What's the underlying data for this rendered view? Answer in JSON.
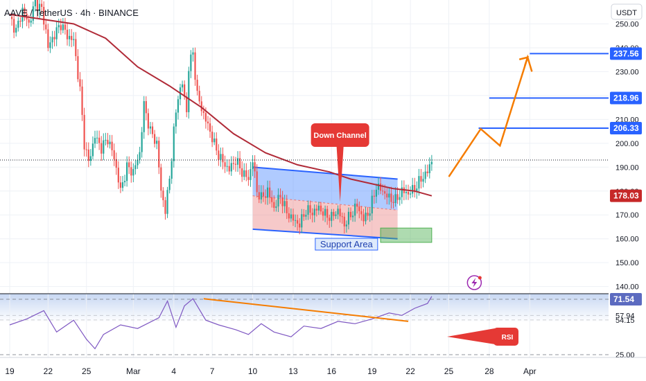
{
  "header": {
    "title": "AAVE / TetherUS · 4h · BINANCE",
    "currency": "USDT"
  },
  "chart_data": {
    "type": "candlestick",
    "symbol": "AAVE / TetherUS",
    "timeframe": "4h",
    "exchange": "BINANCE",
    "currency": "USDT",
    "price_axis": {
      "range": [
        137,
        260
      ],
      "ticks": [
        250,
        240,
        230,
        220,
        210,
        200,
        190,
        180,
        170,
        160,
        150,
        140
      ],
      "tick_labels": [
        "250.00",
        "240.00",
        "230.00",
        "220.00",
        "210.00",
        "200.00",
        "190.00",
        "180.00",
        "170.00",
        "160.00",
        "150.00",
        "140.00"
      ]
    },
    "time_axis": {
      "labels": [
        "19",
        "22",
        "25",
        "Mar",
        "4",
        "7",
        "10",
        "13",
        "16",
        "19",
        "22",
        "25",
        "28",
        "Apr"
      ],
      "label_index": [
        0,
        18,
        36,
        58,
        77,
        95,
        114,
        133,
        151,
        170,
        188,
        206,
        225,
        244
      ]
    },
    "price_points": [
      [
        0,
        253
      ],
      [
        3,
        247
      ],
      [
        6,
        256
      ],
      [
        9,
        250
      ],
      [
        12,
        259
      ],
      [
        15,
        256
      ],
      [
        17,
        247
      ],
      [
        18,
        240
      ],
      [
        20,
        244
      ],
      [
        24,
        250
      ],
      [
        27,
        245
      ],
      [
        30,
        243
      ],
      [
        33,
        222
      ],
      [
        35,
        200
      ],
      [
        37,
        192
      ],
      [
        40,
        203
      ],
      [
        43,
        198
      ],
      [
        46,
        202
      ],
      [
        49,
        194
      ],
      [
        52,
        180
      ],
      [
        55,
        190
      ],
      [
        58,
        188
      ],
      [
        61,
        196
      ],
      [
        63,
        216
      ],
      [
        66,
        205
      ],
      [
        69,
        200
      ],
      [
        71,
        180
      ],
      [
        73,
        172
      ],
      [
        75,
        185
      ],
      [
        77,
        205
      ],
      [
        79,
        220
      ],
      [
        81,
        225
      ],
      [
        83,
        213
      ],
      [
        84,
        232
      ],
      [
        86,
        238
      ],
      [
        88,
        220
      ],
      [
        91,
        212
      ],
      [
        94,
        205
      ],
      [
        97,
        197
      ],
      [
        100,
        192
      ],
      [
        103,
        189
      ],
      [
        106,
        193
      ],
      [
        109,
        188
      ],
      [
        112,
        185
      ],
      [
        114,
        193
      ],
      [
        116,
        180
      ],
      [
        118,
        177
      ],
      [
        121,
        180
      ],
      [
        124,
        173
      ],
      [
        127,
        178
      ],
      [
        130,
        171
      ],
      [
        133,
        168
      ],
      [
        136,
        166
      ],
      [
        139,
        172
      ],
      [
        142,
        171
      ],
      [
        145,
        173
      ],
      [
        148,
        170
      ],
      [
        151,
        169
      ],
      [
        154,
        172
      ],
      [
        157,
        166
      ],
      [
        160,
        170
      ],
      [
        163,
        174
      ],
      [
        166,
        168
      ],
      [
        169,
        172
      ],
      [
        172,
        182
      ],
      [
        175,
        180
      ],
      [
        178,
        177
      ],
      [
        181,
        176
      ],
      [
        184,
        180
      ],
      [
        187,
        179
      ],
      [
        190,
        181
      ],
      [
        193,
        185
      ],
      [
        196,
        188
      ],
      [
        198,
        193
      ]
    ],
    "moving_average": [
      [
        0,
        254
      ],
      [
        15,
        252
      ],
      [
        30,
        250
      ],
      [
        45,
        244
      ],
      [
        60,
        232
      ],
      [
        75,
        224
      ],
      [
        90,
        215
      ],
      [
        105,
        204
      ],
      [
        120,
        196
      ],
      [
        135,
        191
      ],
      [
        150,
        188
      ],
      [
        160,
        185
      ],
      [
        170,
        183
      ],
      [
        180,
        181
      ],
      [
        190,
        180
      ],
      [
        198,
        178
      ]
    ],
    "price_labels": [
      {
        "value": 237.56,
        "text": "237.56"
      },
      {
        "value": 218.96,
        "text": "218.96"
      },
      {
        "value": 206.33,
        "text": "206.33"
      },
      {
        "value": 178.03,
        "text": "178.03"
      }
    ],
    "current_price": 193,
    "projection_path": [
      [
        206,
        186
      ],
      [
        221,
        206
      ],
      [
        230,
        199
      ],
      [
        243,
        236
      ],
      [
        245,
        230
      ]
    ],
    "channel": {
      "upper": [
        [
          114,
          190
        ],
        [
          182,
          185
        ]
      ],
      "lower": [
        [
          114,
          164
        ],
        [
          182,
          160
        ]
      ]
    },
    "support_zone": [
      [
        174,
        158.5
      ],
      [
        198,
        164.5
      ]
    ],
    "annotations": {
      "down_channel": "Down Channel",
      "support_area": "Support Area",
      "rsi": "RSI"
    },
    "rsi": {
      "range": [
        0,
        100
      ],
      "levels": [
        71.54,
        57.94,
        54.15,
        25.0
      ],
      "level_labels": [
        "71.54",
        "57.94",
        "54.15",
        "25.00"
      ],
      "points": [
        [
          0,
          50
        ],
        [
          8,
          55
        ],
        [
          16,
          62
        ],
        [
          22,
          44
        ],
        [
          30,
          54
        ],
        [
          36,
          38
        ],
        [
          40,
          30
        ],
        [
          44,
          42
        ],
        [
          52,
          50
        ],
        [
          60,
          47
        ],
        [
          70,
          56
        ],
        [
          74,
          70
        ],
        [
          78,
          48
        ],
        [
          82,
          66
        ],
        [
          86,
          72
        ],
        [
          92,
          54
        ],
        [
          98,
          50
        ],
        [
          106,
          46
        ],
        [
          112,
          42
        ],
        [
          118,
          51
        ],
        [
          124,
          44
        ],
        [
          132,
          40
        ],
        [
          138,
          49
        ],
        [
          146,
          47
        ],
        [
          154,
          53
        ],
        [
          162,
          51
        ],
        [
          170,
          55
        ],
        [
          178,
          60
        ],
        [
          184,
          58
        ],
        [
          190,
          64
        ],
        [
          196,
          68
        ],
        [
          198,
          74
        ]
      ],
      "divergence_line": [
        [
          91,
          72
        ],
        [
          187,
          53
        ]
      ]
    }
  }
}
